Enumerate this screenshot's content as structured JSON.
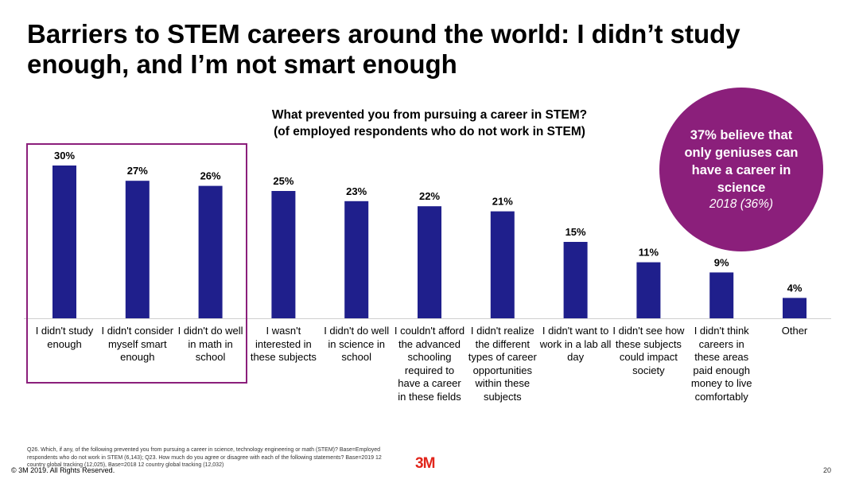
{
  "title": "Barriers to STEM careers around the world: I didn’t study enough, and I’m not smart enough",
  "chart_heading": [
    "What prevented you from pursuing a career in STEM?",
    "(of employed respondents who do not work in STEM)"
  ],
  "callout": {
    "main": "37% believe that only geniuses can have a career in science",
    "sub": "2018 (36%)"
  },
  "colors": {
    "bar": "#1F1F8C",
    "accent": "#8B1F7B",
    "brand": "#E1251B"
  },
  "chart_data": {
    "type": "bar",
    "title": "What prevented you from pursuing a career in STEM? (of employed respondents who do not work in STEM)",
    "categories": [
      "I didn't study enough",
      "I didn't consider myself smart enough",
      "I didn't do well in math in school",
      "I wasn't interested in these subjects",
      "I didn't do well in science in school",
      "I couldn't afford the advanced schooling required to have a career in these fields",
      "I didn't realize the different types of career opportunities within these subjects",
      "I didn't want to work in a lab all day",
      "I didn't see how these subjects could impact society",
      "I didn't think careers in these areas paid enough money to live comfortably",
      "Other"
    ],
    "values": [
      30,
      27,
      26,
      25,
      23,
      22,
      21,
      15,
      11,
      9,
      4
    ],
    "data_labels": [
      "30%",
      "27%",
      "26%",
      "25%",
      "23%",
      "22%",
      "21%",
      "15%",
      "11%",
      "9%",
      "4%"
    ],
    "highlighted_categories": [
      "I didn't study enough",
      "I didn't consider myself smart enough",
      "I didn't do well in math in school"
    ],
    "xlabel": "",
    "ylabel": "",
    "ylim": [
      0,
      30
    ],
    "grid": false
  },
  "footnote": "Q26. Which, if any, of the following prevented you from pursuing a career in science, technology engineering or math (STEM)? Base=Employed respondents who do not work in STEM (6,143); Q23. How much do you agree or disagree with each of the following statements? Base=2019 12 country global tracking (12,025), Base=2018 12 country global tracking (12,032)",
  "copyright": "© 3M 2019.   All Rights Reserved.",
  "logo_text": "3M",
  "page_number": "20"
}
